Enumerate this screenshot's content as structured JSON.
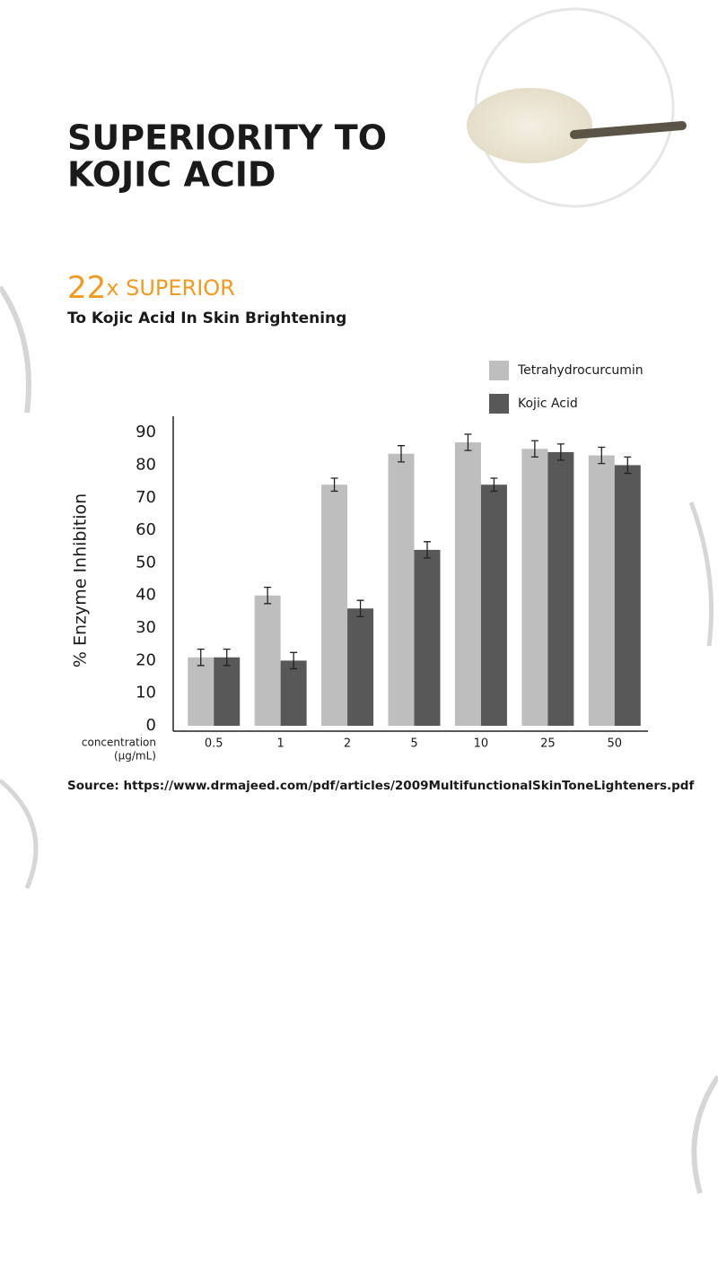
{
  "chart_data": {
    "type": "bar",
    "title": [
      "SUPERIORITY TO",
      "KOJIC ACID"
    ],
    "highlight": {
      "number": "22",
      "text": "x SUPERIOR"
    },
    "subtitle": "To Kojic Acid In Skin Brightening",
    "ylabel": "% Enzyme Inhibition",
    "xlabel": [
      "concentration",
      "(µg/mL)"
    ],
    "categories": [
      "0.5",
      "1",
      "2",
      "5",
      "10",
      "25",
      "50"
    ],
    "series": [
      {
        "name": "Tetrahydrocurcumin",
        "color": "#bfbebe",
        "values": [
          21,
          40,
          74,
          83.5,
          87,
          85,
          83
        ],
        "errors": [
          2.5,
          2.5,
          2,
          2.5,
          2.5,
          2.5,
          2.5
        ]
      },
      {
        "name": "Kojic Acid",
        "color": "#585858",
        "values": [
          21,
          20,
          36,
          54,
          74,
          84,
          80
        ],
        "errors": [
          2.5,
          2.5,
          2.5,
          2.5,
          2,
          2.5,
          2.5
        ]
      }
    ],
    "ylim": [
      0,
      95
    ],
    "yticks": [
      0,
      10,
      20,
      30,
      40,
      50,
      60,
      70,
      80,
      90
    ],
    "source": "Source: https://www.drmajeed.com/pdf/articles/2009MultifunctionalSkinToneLighteners.pdf"
  }
}
